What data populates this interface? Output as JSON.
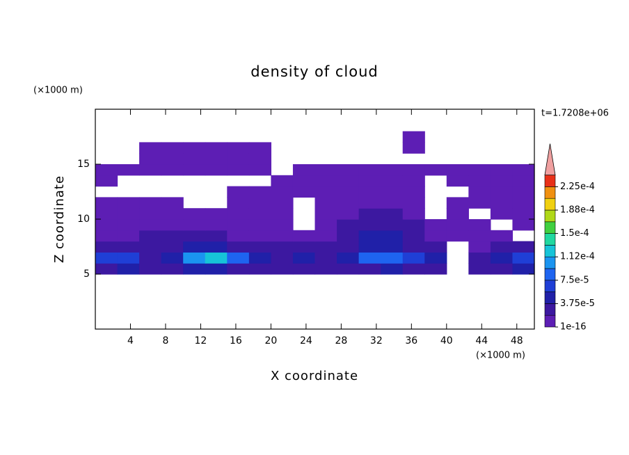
{
  "chart_data": {
    "type": "contour",
    "title": "density of cloud",
    "x_label": "X coordinate",
    "y_label": "Z coordinate",
    "x_unit": "(×1000 m)",
    "y_unit": "(×1000 m)",
    "annotation": "t=1.7208e+06",
    "xlim": [
      0,
      50
    ],
    "ylim": [
      0,
      20
    ],
    "xticks": [
      4,
      8,
      12,
      16,
      20,
      24,
      28,
      32,
      36,
      40,
      44,
      48
    ],
    "yticks": [
      5,
      10,
      15
    ],
    "x": [
      1.25,
      3.75,
      6.25,
      8.75,
      11.25,
      13.75,
      16.25,
      18.75,
      21.25,
      23.75,
      26.25,
      28.75,
      31.25,
      33.75,
      36.25,
      38.75,
      41.25,
      43.75,
      46.25,
      48.75
    ],
    "z": [
      5.5,
      6.5,
      7.5,
      8.5,
      9.5,
      10.5,
      11.5,
      12.5,
      13.5,
      14.5,
      15.5,
      16.5,
      17.5
    ],
    "values": [
      [
        3e-05,
        4e-05,
        2.5e-05,
        3e-05,
        4e-05,
        4e-05,
        3e-05,
        2.5e-05,
        2e-05,
        3e-05,
        2.5e-05,
        2e-05,
        3.5e-05,
        4e-05,
        3e-05,
        2.5e-05,
        null,
        2e-05,
        3e-05,
        4e-05
      ],
      [
        6e-05,
        6e-05,
        3e-05,
        5e-05,
        0.0001,
        0.00012,
        8e-05,
        4e-05,
        3e-05,
        5e-05,
        3e-05,
        4e-05,
        8e-05,
        9e-05,
        7e-05,
        4e-05,
        null,
        2e-05,
        4e-05,
        6e-05
      ],
      [
        2.5e-05,
        2.5e-05,
        2e-05,
        3e-05,
        5e-05,
        5e-05,
        3e-05,
        2.5e-05,
        2e-05,
        2.5e-05,
        2e-05,
        3e-05,
        5e-05,
        5e-05,
        3e-05,
        2.5e-05,
        null,
        1.5e-05,
        2e-05,
        2.5e-05
      ],
      [
        1.5e-05,
        1.5e-05,
        2e-05,
        2e-05,
        2e-05,
        2e-05,
        1.5e-05,
        1.5e-05,
        1e-05,
        1.5e-05,
        1e-05,
        2e-05,
        4e-05,
        4e-05,
        2.5e-05,
        1.5e-05,
        1e-05,
        1e-05,
        5e-06,
        null
      ],
      [
        1.5e-05,
        1e-05,
        1e-05,
        1.5e-05,
        1.5e-05,
        1e-05,
        1e-05,
        5e-06,
        5e-06,
        null,
        5e-06,
        2e-05,
        3e-05,
        3e-05,
        2e-05,
        1e-05,
        5e-06,
        5e-06,
        null,
        5e-06
      ],
      [
        1e-05,
        1e-05,
        5e-06,
        5e-06,
        5e-06,
        5e-06,
        5e-06,
        5e-06,
        5e-06,
        null,
        5e-06,
        1e-05,
        2e-05,
        2e-05,
        1e-05,
        null,
        5e-06,
        null,
        5e-06,
        5e-06
      ],
      [
        5e-06,
        5e-06,
        5e-06,
        5e-06,
        null,
        null,
        5e-06,
        5e-06,
        5e-06,
        null,
        5e-06,
        5e-06,
        5e-06,
        5e-06,
        5e-06,
        null,
        5e-06,
        5e-06,
        5e-06,
        5e-06
      ],
      [
        null,
        null,
        null,
        null,
        null,
        null,
        5e-06,
        5e-06,
        5e-06,
        5e-06,
        5e-06,
        5e-06,
        5e-06,
        5e-06,
        5e-06,
        null,
        null,
        5e-06,
        5e-06,
        5e-06
      ],
      [
        5e-06,
        null,
        null,
        null,
        null,
        null,
        null,
        null,
        5e-06,
        5e-06,
        5e-06,
        5e-06,
        5e-06,
        5e-06,
        5e-06,
        null,
        5e-06,
        5e-06,
        5e-06,
        5e-06
      ],
      [
        5e-06,
        5e-06,
        5e-06,
        5e-06,
        5e-06,
        5e-06,
        5e-06,
        5e-06,
        null,
        5e-06,
        5e-06,
        5e-06,
        5e-06,
        5e-06,
        5e-06,
        5e-06,
        5e-06,
        5e-06,
        5e-06,
        5e-06
      ],
      [
        null,
        null,
        5e-06,
        5e-06,
        5e-06,
        5e-06,
        5e-06,
        5e-06,
        null,
        null,
        null,
        null,
        null,
        null,
        null,
        null,
        null,
        null,
        null,
        null
      ],
      [
        null,
        null,
        5e-06,
        5e-06,
        5e-06,
        5e-06,
        5e-06,
        5e-06,
        null,
        null,
        null,
        null,
        null,
        null,
        5e-06,
        null,
        null,
        null,
        null,
        null
      ],
      [
        null,
        null,
        null,
        null,
        null,
        null,
        null,
        null,
        null,
        null,
        null,
        null,
        null,
        null,
        5e-06,
        null,
        null,
        null,
        null,
        null
      ]
    ],
    "levels": [
      1e-16,
      1.875e-05,
      3.75e-05,
      5.625e-05,
      7.5e-05,
      9.375e-05,
      0.0001125,
      0.00013125,
      0.00015,
      0.00016875,
      0.0001875,
      0.00020625,
      0.000225
    ],
    "colors": [
      "#5d1eb4",
      "#3c18a0",
      "#2020a8",
      "#1f3fd6",
      "#1e64f0",
      "#1a94f0",
      "#16c4d8",
      "#20d8a0",
      "#40d040",
      "#b0d818",
      "#f0d010",
      "#f09010",
      "#e83018"
    ],
    "extend_color": "#f0a0a0",
    "colorbar_ticks": [
      {
        "value": 1e-16,
        "label": "1e-16"
      },
      {
        "value": 3.75e-05,
        "label": "3.75e-5"
      },
      {
        "value": 7.5e-05,
        "label": "7.5e-5"
      },
      {
        "value": 0.0001125,
        "label": "1.12e-4"
      },
      {
        "value": 0.00015,
        "label": "1.5e-4"
      },
      {
        "value": 0.0001875,
        "label": "1.88e-4"
      },
      {
        "value": 0.000225,
        "label": "2.25e-4"
      }
    ]
  }
}
